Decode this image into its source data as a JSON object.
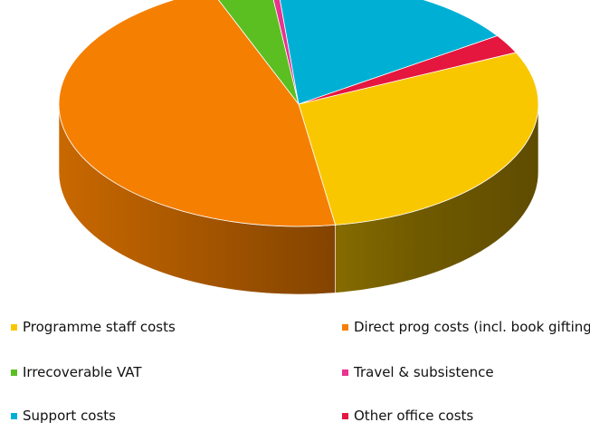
{
  "chart_data": {
    "type": "pie",
    "style": "3d",
    "categories": [
      "Programme staff costs",
      "Direct prog costs (incl. book gifting)",
      "Irrecoverable VAT",
      "Travel & subsistence",
      "Support costs",
      "Other office costs"
    ],
    "values": [
      29.5,
      46.5,
      4.0,
      0.5,
      17.0,
      2.5
    ],
    "colors": [
      "#f9c700",
      "#f57f00",
      "#5bbf21",
      "#e8338f",
      "#00b0d4",
      "#e5173f"
    ],
    "legend_placement": "bottom"
  }
}
